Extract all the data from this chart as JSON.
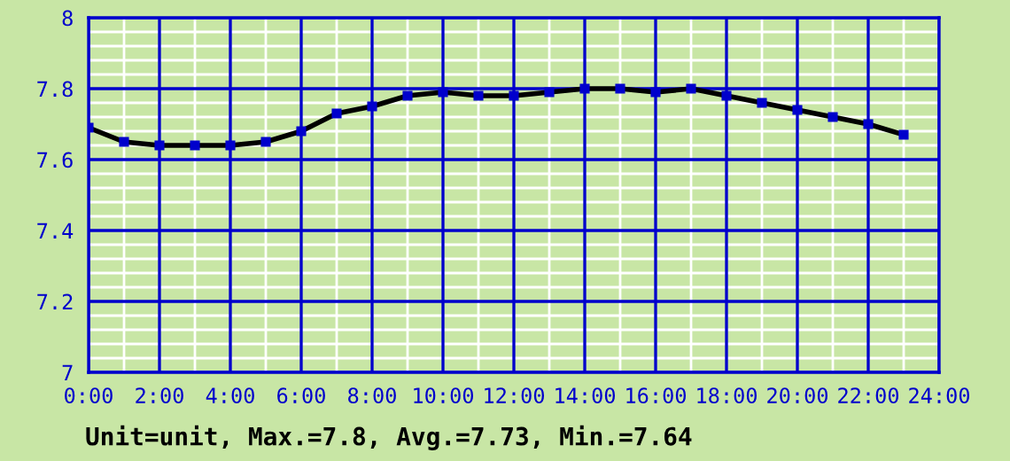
{
  "chart_data": {
    "type": "line",
    "x": [
      0,
      1,
      2,
      3,
      4,
      5,
      6,
      7,
      8,
      9,
      10,
      11,
      12,
      13,
      14,
      15,
      16,
      17,
      18,
      19,
      20,
      21,
      22,
      23
    ],
    "series": [
      {
        "color": "#000000",
        "values": [
          7.69,
          7.65,
          7.64,
          7.64,
          7.64,
          7.65,
          7.68,
          7.73,
          7.75,
          7.78,
          7.79,
          7.78,
          7.78,
          7.79,
          7.8,
          7.8,
          7.79,
          7.8,
          7.78,
          7.76,
          7.74,
          7.72,
          7.7,
          7.67
        ]
      }
    ],
    "xlim": [
      0,
      24
    ],
    "xticks": [
      {
        "value": 0,
        "label": "0:00"
      },
      {
        "value": 1,
        "label": null
      },
      {
        "value": 2,
        "label": "2:00"
      },
      {
        "value": 3,
        "label": null
      },
      {
        "value": 4,
        "label": "4:00"
      },
      {
        "value": 5,
        "label": null
      },
      {
        "value": 6,
        "label": "6:00"
      },
      {
        "value": 7,
        "label": null
      },
      {
        "value": 8,
        "label": "8:00"
      },
      {
        "value": 9,
        "label": null
      },
      {
        "value": 10,
        "label": "10:00"
      },
      {
        "value": 11,
        "label": null
      },
      {
        "value": 12,
        "label": "12:00"
      },
      {
        "value": 13,
        "label": null
      },
      {
        "value": 14,
        "label": "14:00"
      },
      {
        "value": 15,
        "label": null
      },
      {
        "value": 16,
        "label": "16:00"
      },
      {
        "value": 17,
        "label": null
      },
      {
        "value": 18,
        "label": "18:00"
      },
      {
        "value": 19,
        "label": null
      },
      {
        "value": 20,
        "label": "20:00"
      },
      {
        "value": 21,
        "label": null
      },
      {
        "value": 22,
        "label": "22:00"
      },
      {
        "value": 23,
        "label": null
      },
      {
        "value": 24,
        "label": "24:00"
      }
    ],
    "ylim": [
      7,
      8
    ],
    "yticks": [
      7,
      {
        "value": 7.04,
        "label": null
      },
      {
        "value": 7.08,
        "label": null
      },
      {
        "value": 7.12,
        "label": null
      },
      {
        "value": 7.16,
        "label": null
      },
      7.2,
      {
        "value": 7.24,
        "label": null
      },
      {
        "value": 7.28,
        "label": null
      },
      {
        "value": 7.32,
        "label": null
      },
      {
        "value": 7.36,
        "label": null
      },
      7.4,
      {
        "value": 7.44,
        "label": null
      },
      {
        "value": 7.48,
        "label": null
      },
      {
        "value": 7.52,
        "label": null
      },
      {
        "value": 7.56,
        "label": null
      },
      7.6,
      {
        "value": 7.64,
        "label": null
      },
      {
        "value": 7.68,
        "label": null
      },
      {
        "value": 7.72,
        "label": null
      },
      {
        "value": 7.76,
        "label": null
      },
      7.8,
      {
        "value": 7.84,
        "label": null
      },
      {
        "value": 7.88,
        "label": null
      },
      {
        "value": 7.92,
        "label": null
      },
      {
        "value": 7.96,
        "label": null
      },
      8
    ],
    "grid": true,
    "marker": "square",
    "line_style": "solid",
    "annotations": [
      "Unit=unit, Max.=7.8, Avg.=7.73, Min.=7.64"
    ]
  }
}
